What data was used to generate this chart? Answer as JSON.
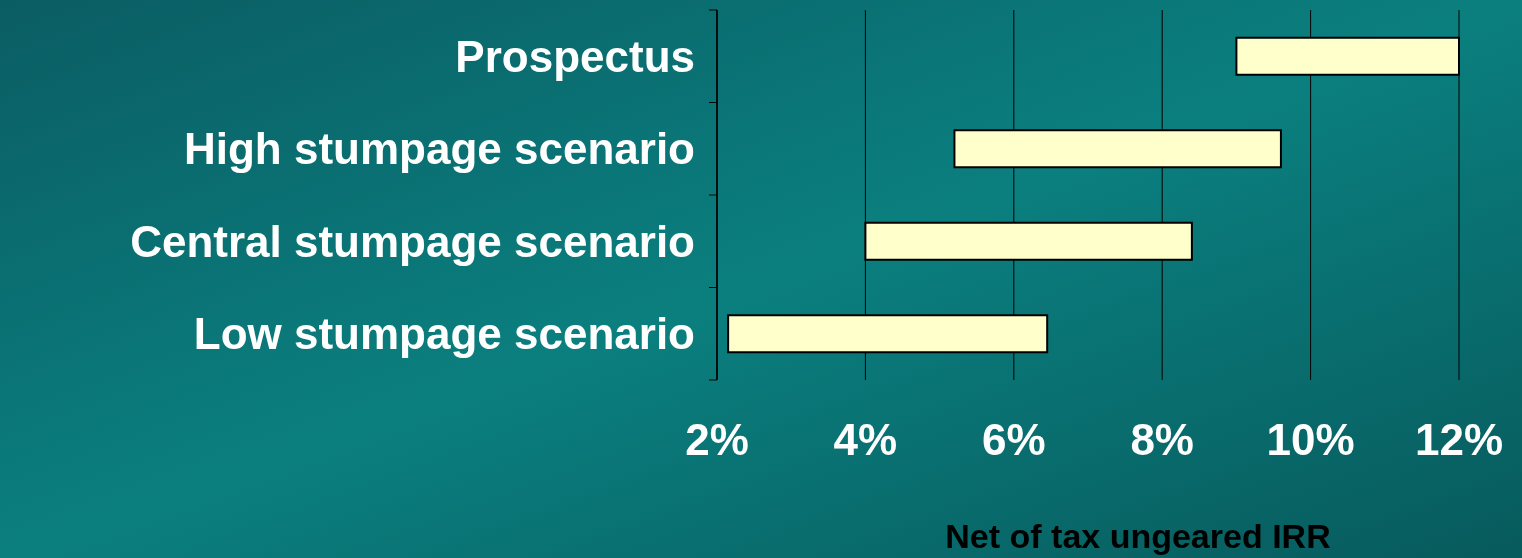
{
  "chart_data": {
    "type": "bar",
    "orientation": "horizontal",
    "xlabel": "Net of tax ungeared IRR",
    "categories": [
      "Prospectus",
      "High stumpage scenario",
      "Central stumpage scenario",
      "Low stumpage scenario"
    ],
    "base": [
      9.0,
      5.2,
      4.0,
      2.15
    ],
    "values": [
      3.0,
      4.4,
      4.4,
      4.3
    ],
    "color": "#ffffcc",
    "xlim": [
      2,
      12
    ],
    "xticks": [
      {
        "value": 2,
        "label": "2%"
      },
      {
        "value": 4,
        "label": "4%"
      },
      {
        "value": 6,
        "label": "6%"
      },
      {
        "value": 8,
        "label": "8%"
      },
      {
        "value": 10,
        "label": "10%"
      },
      {
        "value": 12,
        "label": "12%"
      }
    ],
    "grid": "x"
  }
}
